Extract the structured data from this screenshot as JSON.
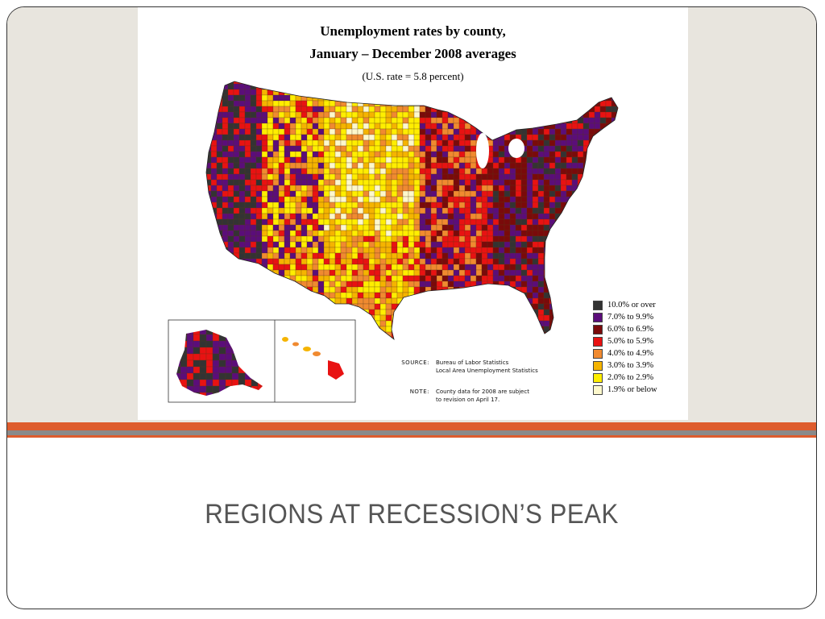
{
  "slide": {
    "title": "REGIONS AT RECESSION’S PEAK"
  },
  "map": {
    "title_line1": "Unemployment rates by county,",
    "title_line2": "January – December 2008 averages",
    "subtitle": "(U.S. rate = 5.8 percent)",
    "legend": [
      {
        "label": "10.0% or over",
        "color": "#333333"
      },
      {
        "label": "7.0% to 9.9%",
        "color": "#5b0d7a"
      },
      {
        "label": "6.0% to 6.9%",
        "color": "#7a0a0a"
      },
      {
        "label": "5.0% to 5.9%",
        "color": "#e81212"
      },
      {
        "label": "4.0% to 4.9%",
        "color": "#f08a30"
      },
      {
        "label": "3.0% to 3.9%",
        "color": "#f5b400"
      },
      {
        "label": "2.0% to 2.9%",
        "color": "#ffee00"
      },
      {
        "label": "1.9% or below",
        "color": "#fdf8cc"
      }
    ],
    "source_key": "SOURCE:",
    "source_line1": "Bureau of Labor Statistics",
    "source_line2": "Local Area Unemployment Statistics",
    "note_key": "NOTE:",
    "note_line1": "County data for 2008 are subject",
    "note_line2": "to revision on April 17."
  }
}
